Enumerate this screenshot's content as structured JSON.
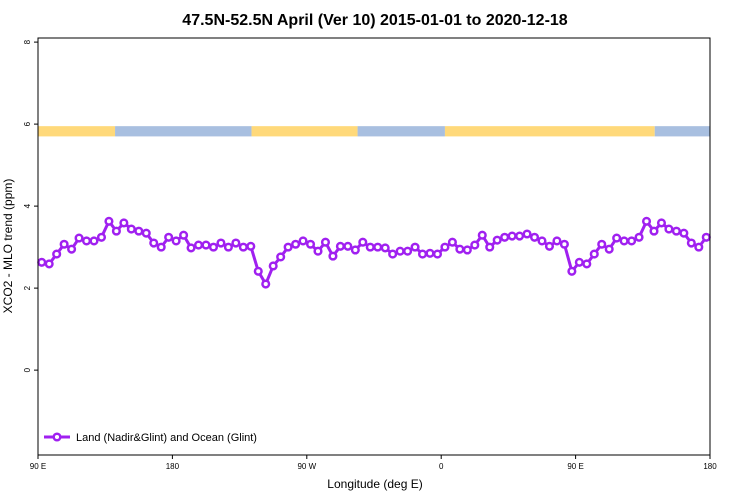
{
  "chart_data": {
    "type": "line",
    "title": "47.5N-52.5N April (Ver 10)   2015-01-01 to 2020-12-18",
    "xlabel": "Longitude (deg E)",
    "ylabel": "XCO2 - MLO trend (ppm)",
    "xlim": [
      90,
      540
    ],
    "ylim": [
      -2.07,
      8.1
    ],
    "xticks": [
      {
        "value": 90,
        "label": "90 E"
      },
      180,
      {
        "value": 270,
        "label": "90 W"
      },
      {
        "value": 360,
        "label": "0"
      },
      {
        "value": 450,
        "label": "90 E"
      },
      {
        "value": 540,
        "label": "180"
      }
    ],
    "yticks": [
      0,
      2,
      4,
      6,
      8
    ],
    "legend": "bottom-left",
    "strip": {
      "ylim": [
        5.7,
        5.95
      ],
      "segments": [
        {
          "x": [
            90,
            141.6
          ],
          "color": "#ffd97a"
        },
        {
          "x": [
            141.6,
            233
          ],
          "color": "#a8bfe0"
        },
        {
          "x": [
            233,
            304
          ],
          "color": "#ffd97a"
        },
        {
          "x": [
            304,
            362.5
          ],
          "color": "#a8bfe0"
        },
        {
          "x": [
            362.5,
            503
          ],
          "color": "#ffd97a"
        },
        {
          "x": [
            503,
            540
          ],
          "color": "#a8bfe0"
        }
      ]
    },
    "x": [
      92.5,
      97.5,
      102.5,
      107.5,
      112.5,
      117.5,
      122.5,
      127.5,
      132.5,
      137.5,
      142.5,
      147.5,
      152.5,
      157.5,
      162.5,
      167.5,
      172.5,
      177.5,
      182.5,
      187.5,
      192.5,
      197.5,
      202.5,
      207.5,
      212.5,
      217.5,
      222.5,
      227.5,
      232.5,
      237.5,
      242.5,
      247.5,
      252.5,
      257.5,
      262.5,
      267.5,
      272.5,
      277.5,
      282.5,
      287.5,
      292.5,
      297.5,
      302.5,
      307.5,
      312.5,
      317.5,
      322.5,
      327.5,
      332.5,
      337.5,
      342.5,
      347.5,
      352.5,
      357.5,
      362.5,
      367.5,
      372.5,
      377.5,
      382.5,
      387.5,
      392.5,
      397.5,
      402.5,
      407.5,
      412.5,
      417.5,
      422.5,
      427.5,
      432.5,
      437.5,
      442.5,
      447.5,
      452.5,
      457.5,
      462.5,
      467.5,
      472.5,
      477.5,
      482.5,
      487.5,
      492.5,
      497.5,
      502.5,
      507.5,
      512.5,
      517.5,
      522.5,
      527.5,
      532.5,
      537.5
    ],
    "series": [
      {
        "name": "Land (Nadir&Glint) and Ocean (Glint)",
        "color": "#a020f0",
        "values": [
          2.63,
          2.59,
          2.83,
          3.07,
          2.95,
          3.22,
          3.15,
          3.15,
          3.24,
          3.63,
          3.39,
          3.59,
          3.44,
          3.39,
          3.34,
          3.1,
          3.0,
          3.24,
          3.15,
          3.29,
          2.98,
          3.05,
          3.05,
          3.0,
          3.1,
          3.0,
          3.1,
          3.0,
          3.02,
          2.41,
          2.1,
          2.54,
          2.76,
          3.0,
          3.07,
          3.15,
          3.07,
          2.9,
          3.12,
          2.78,
          3.02,
          3.02,
          2.93,
          3.12,
          3.0,
          3.0,
          2.98,
          2.83,
          2.9,
          2.9,
          3.0,
          2.83,
          2.85,
          2.83,
          3.0,
          3.12,
          2.95,
          2.93,
          3.05,
          3.29,
          3.0,
          3.17,
          3.24,
          3.27,
          3.27,
          3.32,
          3.24,
          3.15,
          3.02,
          3.15,
          3.07,
          2.41,
          2.63,
          2.59,
          2.83,
          3.07,
          2.95,
          3.22,
          3.15,
          3.15,
          3.24,
          3.63,
          3.39,
          3.59,
          3.44,
          3.39,
          3.34,
          3.1,
          3.0,
          3.24
        ]
      }
    ]
  }
}
